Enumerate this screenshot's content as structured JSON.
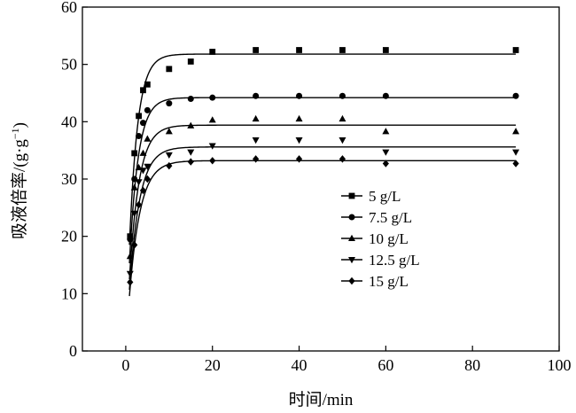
{
  "chart_data": {
    "type": "scatter",
    "xlabel": "时间/min",
    "ylabel": "吸液倍率/(g·g⁻¹)",
    "ylabel_main": "吸液倍率/(g·g",
    "ylabel_sup": "−1",
    "ylabel_end": ")",
    "xlim": [
      -10,
      100
    ],
    "ylim": [
      0,
      60
    ],
    "xticks": [
      0,
      20,
      40,
      60,
      80,
      100
    ],
    "yticks": [
      0,
      10,
      20,
      30,
      40,
      50,
      60
    ],
    "grid": false,
    "legend_position": "center-right",
    "x": [
      1,
      2,
      3,
      4,
      5,
      10,
      15,
      20,
      30,
      40,
      50,
      60,
      90
    ],
    "series": [
      {
        "name": "5 g/L",
        "marker": "square",
        "fit_max": 51.8,
        "fit_k": 0.52,
        "values": [
          20,
          34.5,
          41,
          45.5,
          46.5,
          49.2,
          50.5,
          52.2,
          52.5,
          52.5,
          52.5,
          52.5,
          52.5
        ]
      },
      {
        "name": "7.5 g/L",
        "marker": "circle",
        "fit_max": 44.2,
        "fit_k": 0.5,
        "values": [
          19.5,
          30,
          37.5,
          39.8,
          42,
          43.2,
          44,
          44.2,
          44.5,
          44.5,
          44.5,
          44.5,
          44.5
        ]
      },
      {
        "name": "10 g/L",
        "marker": "triangle-up",
        "fit_max": 39.4,
        "fit_k": 0.45,
        "values": [
          16.5,
          28.5,
          32,
          34.5,
          37,
          38.3,
          39.3,
          40.3,
          40.5,
          40.5,
          40.5,
          38.3,
          38.3
        ]
      },
      {
        "name": "12.5 g/L",
        "marker": "triangle-down",
        "fit_max": 35.6,
        "fit_k": 0.42,
        "values": [
          13.5,
          24,
          29.5,
          31.5,
          32.2,
          34.2,
          34.7,
          35.8,
          36.8,
          36.8,
          36.8,
          34.7,
          34.7
        ]
      },
      {
        "name": "15 g/L",
        "marker": "diamond",
        "fit_max": 33.2,
        "fit_k": 0.4,
        "values": [
          12,
          18.5,
          25.5,
          28,
          30,
          32.3,
          33,
          33.2,
          33.5,
          33.5,
          33.5,
          32.7,
          32.7
        ]
      }
    ]
  }
}
